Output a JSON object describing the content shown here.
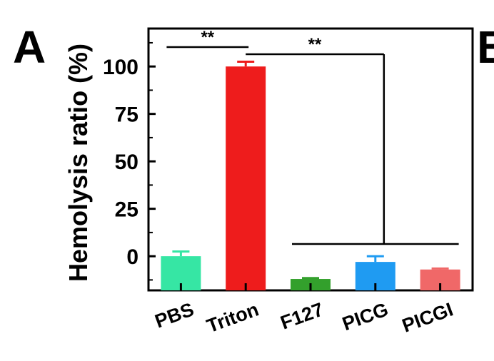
{
  "panel_label": "A",
  "next_panel_label": "B",
  "chart_data": {
    "type": "bar",
    "title": "",
    "xlabel": "",
    "ylabel": "Hemolysis ratio (%)",
    "categories": [
      "PBS",
      "Triton",
      "F127",
      "PICG",
      "PICGI"
    ],
    "values": [
      0,
      100,
      -12,
      -3,
      -7
    ],
    "errors": [
      2.5,
      2.5,
      0.5,
      3,
      0.5
    ],
    "colors": [
      "#36e6a4",
      "#ee1c1c",
      "#33a02c",
      "#1f9bf2",
      "#f06868"
    ],
    "yticks": [
      0,
      25,
      50,
      75,
      100
    ],
    "ytick_labels": [
      "0",
      "25",
      "50",
      "75",
      "100"
    ],
    "ylim": [
      -18,
      120
    ],
    "grid": false,
    "significance": [
      {
        "label": "**",
        "from": "PBS",
        "to": "Triton"
      },
      {
        "label": "**",
        "from": "Triton",
        "to": [
          "F127",
          "PICG",
          "PICGI"
        ]
      }
    ]
  }
}
